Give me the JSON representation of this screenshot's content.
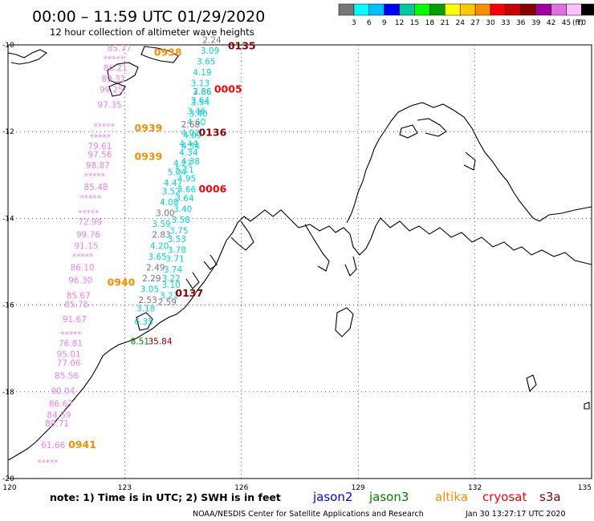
{
  "title": "00:00 – 11:59 UTC 01/29/2020",
  "subtitle": "12 hour collection of altimeter wave heights",
  "legend": {
    "unit": "(ft)",
    "ticks": [
      "3",
      "6",
      "9",
      "12",
      "15",
      "18",
      "21",
      "24",
      "27",
      "30",
      "33",
      "36",
      "39",
      "42",
      "45",
      "70"
    ],
    "colors": [
      "#777777",
      "#00ffff",
      "#00bfff",
      "#0000ff",
      "#00c8a0",
      "#00ff00",
      "#00a000",
      "#ffff00",
      "#ffc800",
      "#ff8c00",
      "#ff0000",
      "#c80000",
      "#8b0000",
      "#a000a0",
      "#e070e0",
      "#ffc0ff",
      "#000000"
    ]
  },
  "axes": {
    "lat_labels": [
      "-10",
      "-12",
      "-14",
      "-16",
      "-18",
      "-20"
    ],
    "lon_labels": [
      "120",
      "123",
      "126",
      "129",
      "132",
      "135"
    ],
    "lon_range": [
      120,
      135
    ],
    "lat_range": [
      -20,
      -10
    ]
  },
  "note": "note:  1) Time is in UTC;  2) SWH is in feet",
  "satellites": [
    {
      "name": "jason2",
      "color": "#0000ff"
    },
    {
      "name": "jason3",
      "color": "#008000"
    },
    {
      "name": "altika",
      "color": "#ff8c00"
    },
    {
      "name": "cryosat",
      "color": "#ff0000"
    },
    {
      "name": "s3a",
      "color": "#8b0000"
    }
  ],
  "footer_left": "NOAA/NESDIS Center for Satellite Applications and Research",
  "footer_right": "Jan 30 13:27:17 UTC 2020",
  "time_labels": [
    {
      "text": "0135",
      "lon": 125.65,
      "lat": -10.1,
      "color": "#8b0000"
    },
    {
      "text": "0005",
      "lon": 125.3,
      "lat": -11.1,
      "color": "#ff0000"
    },
    {
      "text": "0136",
      "lon": 124.9,
      "lat": -12.1,
      "color": "#8b0000"
    },
    {
      "text": "0006",
      "lon": 124.9,
      "lat": -13.4,
      "color": "#ff0000"
    },
    {
      "text": "0137",
      "lon": 124.3,
      "lat": -15.8,
      "color": "#8b0000"
    },
    {
      "text": "0938",
      "lon": 123.75,
      "lat": -10.25,
      "color": "#ff8c00"
    },
    {
      "text": "0939",
      "lon": 123.25,
      "lat": -12.0,
      "color": "#ff8c00"
    },
    {
      "text": "0939",
      "lon": 123.25,
      "lat": -12.65,
      "color": "#ff8c00"
    },
    {
      "text": "0940",
      "lon": 122.55,
      "lat": -15.55,
      "color": "#ff8c00"
    },
    {
      "text": "0941",
      "lon": 121.55,
      "lat": -19.3,
      "color": "#ff8c00"
    }
  ],
  "wave_values": [
    {
      "t": "2.24",
      "lon": 125.0,
      "lat": -9.95,
      "c": "#777777"
    },
    {
      "t": "3.09",
      "lon": 124.95,
      "lat": -10.2,
      "c": "#00d8d8"
    },
    {
      "t": "3.65",
      "lon": 124.85,
      "lat": -10.45,
      "c": "#00d8d8"
    },
    {
      "t": "4.19",
      "lon": 124.75,
      "lat": -10.7,
      "c": "#00d8d8"
    },
    {
      "t": "3.13",
      "lon": 124.7,
      "lat": -10.95,
      "c": "#00d8d8"
    },
    {
      "t": "2.86",
      "lon": 124.75,
      "lat": -11.15,
      "c": "#777777"
    },
    {
      "t": "3.86",
      "lon": 124.75,
      "lat": -11.15,
      "c": "#00d8d8"
    },
    {
      "t": "3.64",
      "lon": 124.7,
      "lat": -11.35,
      "c": "#00d8d8"
    },
    {
      "t": "3.54",
      "lon": 124.7,
      "lat": -11.4,
      "c": "#00d8d8"
    },
    {
      "t": "3.46",
      "lon": 124.6,
      "lat": -11.6,
      "c": "#00d8d8"
    },
    {
      "t": "3.40",
      "lon": 124.65,
      "lat": -11.65,
      "c": "#00d8d8"
    },
    {
      "t": "4.60",
      "lon": 124.6,
      "lat": -11.85,
      "c": "#00d8d8"
    },
    {
      "t": "2.68",
      "lon": 124.45,
      "lat": -11.9,
      "c": "#777777"
    },
    {
      "t": "4.02",
      "lon": 124.45,
      "lat": -12.1,
      "c": "#00d8d8"
    },
    {
      "t": "4.09",
      "lon": 124.5,
      "lat": -12.15,
      "c": "#00d8d8"
    },
    {
      "t": "4.44",
      "lon": 124.4,
      "lat": -12.35,
      "c": "#00d8d8"
    },
    {
      "t": "4.54",
      "lon": 124.45,
      "lat": -12.4,
      "c": "#00d8d8"
    },
    {
      "t": "4.34",
      "lon": 124.4,
      "lat": -12.55,
      "c": "#00d8d8"
    },
    {
      "t": "4.38",
      "lon": 124.45,
      "lat": -12.75,
      "c": "#00d8d8"
    },
    {
      "t": "4.27",
      "lon": 124.25,
      "lat": -12.8,
      "c": "#00d8d8"
    },
    {
      "t": "5.11",
      "lon": 124.3,
      "lat": -12.95,
      "c": "#00d8d8"
    },
    {
      "t": "5.04",
      "lon": 124.1,
      "lat": -13.0,
      "c": "#00d8d8"
    },
    {
      "t": "4.95",
      "lon": 124.35,
      "lat": -13.15,
      "c": "#00d8d8"
    },
    {
      "t": "4.47",
      "lon": 124.0,
      "lat": -13.25,
      "c": "#00d8d8"
    },
    {
      "t": "3.66",
      "lon": 124.35,
      "lat": -13.4,
      "c": "#00d8d8"
    },
    {
      "t": "3.52",
      "lon": 123.95,
      "lat": -13.45,
      "c": "#00d8d8"
    },
    {
      "t": "3.64",
      "lon": 124.3,
      "lat": -13.6,
      "c": "#00d8d8"
    },
    {
      "t": "4.08",
      "lon": 123.9,
      "lat": -13.7,
      "c": "#00d8d8"
    },
    {
      "t": "3.40",
      "lon": 124.25,
      "lat": -13.85,
      "c": "#00d8d8"
    },
    {
      "t": "3.00",
      "lon": 123.8,
      "lat": -13.95,
      "c": "#777777"
    },
    {
      "t": "3.58",
      "lon": 124.2,
      "lat": -14.1,
      "c": "#00d8d8"
    },
    {
      "t": "3.59",
      "lon": 123.7,
      "lat": -14.2,
      "c": "#00d8d8"
    },
    {
      "t": "3.75",
      "lon": 124.15,
      "lat": -14.35,
      "c": "#00d8d8"
    },
    {
      "t": "2.83",
      "lon": 123.7,
      "lat": -14.45,
      "c": "#777777"
    },
    {
      "t": "3.53",
      "lon": 124.1,
      "lat": -14.55,
      "c": "#00d8d8"
    },
    {
      "t": "4.20",
      "lon": 123.65,
      "lat": -14.7,
      "c": "#00d8d8"
    },
    {
      "t": "3.78",
      "lon": 124.1,
      "lat": -14.8,
      "c": "#00d8d8"
    },
    {
      "t": "3.65",
      "lon": 123.6,
      "lat": -14.95,
      "c": "#00d8d8"
    },
    {
      "t": "3.71",
      "lon": 124.05,
      "lat": -15.0,
      "c": "#00d8d8"
    },
    {
      "t": "2.49",
      "lon": 123.55,
      "lat": -15.2,
      "c": "#777777"
    },
    {
      "t": "3.74",
      "lon": 124.0,
      "lat": -15.25,
      "c": "#00d8d8"
    },
    {
      "t": "2.29",
      "lon": 123.45,
      "lat": -15.45,
      "c": "#777777"
    },
    {
      "t": "3.22",
      "lon": 123.95,
      "lat": -15.45,
      "c": "#00d8d8"
    },
    {
      "t": "3.10",
      "lon": 123.95,
      "lat": -15.6,
      "c": "#00d8d8"
    },
    {
      "t": "3.05",
      "lon": 123.4,
      "lat": -15.7,
      "c": "#00d8d8"
    },
    {
      "t": "3.21",
      "lon": 123.9,
      "lat": -15.85,
      "c": "#00d8d8"
    },
    {
      "t": "2.53",
      "lon": 123.35,
      "lat": -15.95,
      "c": "#777777"
    },
    {
      "t": "2.59",
      "lon": 123.85,
      "lat": -16.0,
      "c": "#777777"
    },
    {
      "t": "3.18",
      "lon": 123.3,
      "lat": -16.15,
      "c": "#00d8d8"
    },
    {
      "t": "6.35",
      "lon": 123.25,
      "lat": -16.45,
      "c": "#00d8d8"
    },
    {
      "t": "8.51",
      "lon": 123.15,
      "lat": -16.9,
      "c": "#008000"
    },
    {
      "t": "35.84",
      "lon": 123.6,
      "lat": -16.9,
      "c": "#8b0000"
    },
    {
      "t": "85.77",
      "lon": 122.55,
      "lat": -10.15,
      "c": "#ee82ee"
    },
    {
      "t": "*****",
      "lon": 122.45,
      "lat": -10.4,
      "c": "#ee82ee"
    },
    {
      "t": "86.21",
      "lon": 122.45,
      "lat": -10.6,
      "c": "#ee82ee"
    },
    {
      "t": "89.31",
      "lon": 122.4,
      "lat": -10.85,
      "c": "#ee82ee"
    },
    {
      "t": "99.25",
      "lon": 122.35,
      "lat": -11.1,
      "c": "#ee82ee"
    },
    {
      "t": "97.35",
      "lon": 122.3,
      "lat": -11.45,
      "c": "#ee82ee"
    },
    {
      "t": "*****",
      "lon": 122.2,
      "lat": -11.95,
      "c": "#ee82ee"
    },
    {
      "t": "*****",
      "lon": 122.1,
      "lat": -12.2,
      "c": "#ee82ee"
    },
    {
      "t": "79.61",
      "lon": 122.05,
      "lat": -12.4,
      "c": "#ee82ee"
    },
    {
      "t": "97.56",
      "lon": 122.05,
      "lat": -12.6,
      "c": "#ee82ee"
    },
    {
      "t": "98.87",
      "lon": 122.0,
      "lat": -12.85,
      "c": "#ee82ee"
    },
    {
      "t": "*****",
      "lon": 121.95,
      "lat": -13.1,
      "c": "#ee82ee"
    },
    {
      "t": "85.48",
      "lon": 121.95,
      "lat": -13.35,
      "c": "#ee82ee"
    },
    {
      "t": "*****",
      "lon": 121.85,
      "lat": -13.6,
      "c": "#ee82ee"
    },
    {
      "t": "*****",
      "lon": 121.8,
      "lat": -13.95,
      "c": "#ee82ee"
    },
    {
      "t": "72.99",
      "lon": 121.8,
      "lat": -14.15,
      "c": "#ee82ee"
    },
    {
      "t": "99.76",
      "lon": 121.75,
      "lat": -14.45,
      "c": "#ee82ee"
    },
    {
      "t": "91.15",
      "lon": 121.7,
      "lat": -14.7,
      "c": "#ee82ee"
    },
    {
      "t": "*****",
      "lon": 121.65,
      "lat": -14.95,
      "c": "#ee82ee"
    },
    {
      "t": "86.10",
      "lon": 121.6,
      "lat": -15.2,
      "c": "#ee82ee"
    },
    {
      "t": "96.30",
      "lon": 121.55,
      "lat": -15.5,
      "c": "#ee82ee"
    },
    {
      "t": "85.67",
      "lon": 121.5,
      "lat": -15.85,
      "c": "#ee82ee"
    },
    {
      "t": "85.76",
      "lon": 121.45,
      "lat": -16.05,
      "c": "#ee82ee"
    },
    {
      "t": "91.67",
      "lon": 121.4,
      "lat": -16.4,
      "c": "#ee82ee"
    },
    {
      "t": "*****",
      "lon": 121.35,
      "lat": -16.75,
      "c": "#ee82ee"
    },
    {
      "t": "76.81",
      "lon": 121.3,
      "lat": -16.95,
      "c": "#ee82ee"
    },
    {
      "t": "95.01",
      "lon": 121.25,
      "lat": -17.2,
      "c": "#ee82ee"
    },
    {
      "t": "77.06",
      "lon": 121.25,
      "lat": -17.4,
      "c": "#ee82ee"
    },
    {
      "t": "85.56",
      "lon": 121.2,
      "lat": -17.7,
      "c": "#ee82ee"
    },
    {
      "t": "90.04",
      "lon": 121.1,
      "lat": -18.05,
      "c": "#ee82ee"
    },
    {
      "t": "86.67",
      "lon": 121.05,
      "lat": -18.35,
      "c": "#ee82ee"
    },
    {
      "t": "84.59",
      "lon": 121.0,
      "lat": -18.6,
      "c": "#ee82ee"
    },
    {
      "t": "89.71",
      "lon": 120.95,
      "lat": -18.8,
      "c": "#ee82ee"
    },
    {
      "t": "61.66",
      "lon": 120.85,
      "lat": -19.3,
      "c": "#ee82ee"
    },
    {
      "t": "*****",
      "lon": 120.75,
      "lat": -19.7,
      "c": "#ee82ee"
    }
  ]
}
